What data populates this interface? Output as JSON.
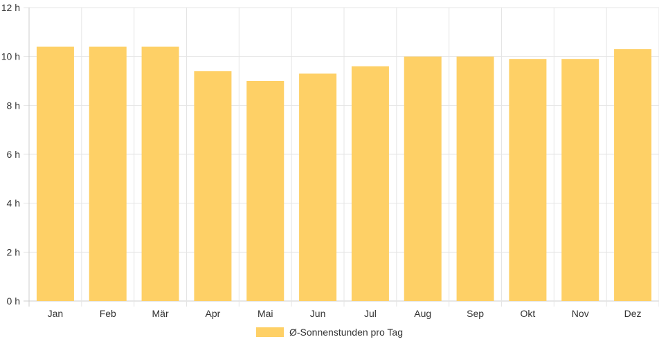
{
  "chart_data": {
    "type": "bar",
    "categories": [
      "Jan",
      "Feb",
      "Mär",
      "Apr",
      "Mai",
      "Jun",
      "Jul",
      "Aug",
      "Sep",
      "Okt",
      "Nov",
      "Dez"
    ],
    "series": [
      {
        "name": "Ø-Sonnenstunden pro Tag",
        "values": [
          10.4,
          10.4,
          10.4,
          9.4,
          9.0,
          9.3,
          9.6,
          10.0,
          10.0,
          9.9,
          9.9,
          10.3
        ]
      }
    ],
    "y_ticks": [
      "0 h",
      "2 h",
      "4 h",
      "6 h",
      "8 h",
      "10 h",
      "12 h"
    ],
    "ylim": [
      0,
      12
    ],
    "grid": true,
    "legend_position": "bottom",
    "colors": {
      "bar": "#fed066",
      "grid": "#e5e5e5",
      "axis": "#cccccc"
    }
  }
}
